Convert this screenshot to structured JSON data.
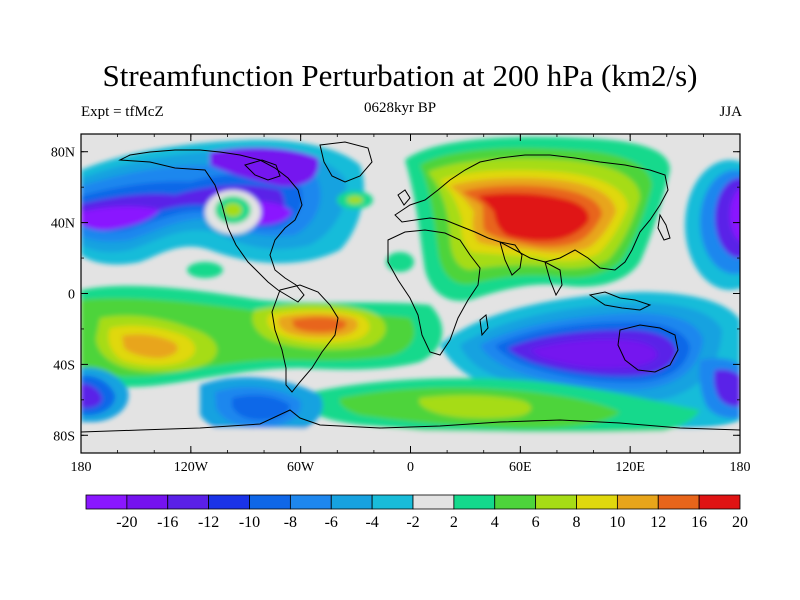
{
  "chart_data": {
    "type": "heatmap",
    "title": "Streamfunction Perturbation at 200 hPa (km2/s)",
    "subtitle_left": "Expt = tfMcZ",
    "subtitle_center": "0628kyr BP",
    "subtitle_right": "JJA",
    "x_ticks": [
      "180",
      "120W",
      "60W",
      "0",
      "60E",
      "120E",
      "180"
    ],
    "x_values": [
      -180,
      -120,
      -60,
      0,
      60,
      120,
      180
    ],
    "y_ticks": [
      "80N",
      "40N",
      "0",
      "40S",
      "80S"
    ],
    "y_values": [
      80,
      40,
      0,
      -40,
      -80
    ],
    "xlim": [
      -180,
      180
    ],
    "ylim": [
      -90,
      90
    ],
    "colorbar_levels": [
      "-20",
      "-16",
      "-12",
      "-10",
      "-8",
      "-6",
      "-4",
      "-2",
      "2",
      "4",
      "6",
      "8",
      "10",
      "12",
      "16",
      "20"
    ],
    "colorbar_colors": [
      "#8a17ff",
      "#7512ef",
      "#5a20e8",
      "#1a33e8",
      "#0f67e8",
      "#1e87ee",
      "#17a2e0",
      "#19bcd9",
      "#e3e3e3",
      "#14d98c",
      "#4dd43b",
      "#a6dc16",
      "#e0d80d",
      "#e8a51a",
      "#e8651a",
      "#e01313"
    ],
    "fields": [
      {
        "region": "Asia/Europe high",
        "lon": 80,
        "lat": 30,
        "value": 20
      },
      {
        "region": "Mediterranean arm",
        "lon": 40,
        "lat": 45,
        "value": 16
      },
      {
        "region": "North Pacific low",
        "lon": -165,
        "lat": 35,
        "value": -20
      },
      {
        "region": "North America low",
        "lon": -90,
        "lat": 45,
        "value": -16
      },
      {
        "region": "Canada low",
        "lon": -110,
        "lat": 65,
        "value": -12
      },
      {
        "region": "Indian/Australia low",
        "lon": 105,
        "lat": -30,
        "value": -16
      },
      {
        "region": "South Atlantic high",
        "lon": -40,
        "lat": -25,
        "value": 12
      },
      {
        "region": "South Pacific high",
        "lon": -135,
        "lat": -35,
        "value": 10
      },
      {
        "region": "South Atlantic/Africa high",
        "lon": 30,
        "lat": -55,
        "value": 6
      },
      {
        "region": "Antarctic coast low",
        "lon": -70,
        "lat": -72,
        "value": -8
      },
      {
        "region": "Southwest Pacific low",
        "lon": -175,
        "lat": -55,
        "value": -8
      },
      {
        "region": "Northwest Pacific low",
        "lon": 170,
        "lat": 40,
        "value": -12
      },
      {
        "region": "Southern low",
        "lon": 170,
        "lat": -55,
        "value": -8
      }
    ]
  }
}
